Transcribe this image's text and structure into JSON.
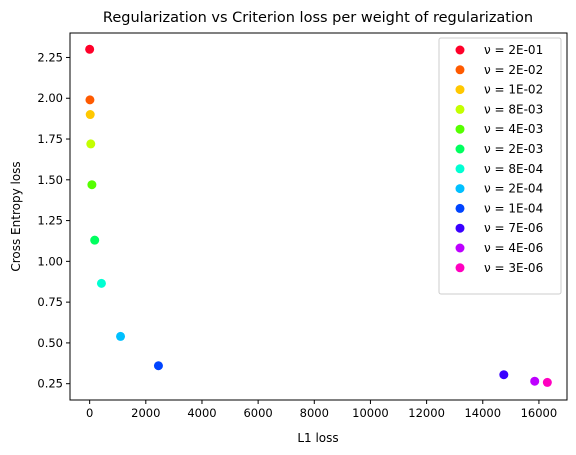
{
  "chart_data": {
    "type": "scatter",
    "title": "Regularization vs Criterion loss per weight of regularization",
    "xlabel": "L1 loss",
    "ylabel": "Cross Entropy loss",
    "xlim": [
      -700,
      17000
    ],
    "ylim": [
      0.15,
      2.4
    ],
    "xticks": [
      0,
      2000,
      4000,
      6000,
      8000,
      10000,
      12000,
      14000,
      16000
    ],
    "xtick_labels": [
      "0",
      "2000",
      "4000",
      "6000",
      "8000",
      "10000",
      "12000",
      "14000",
      "16000"
    ],
    "yticks": [
      0.25,
      0.5,
      0.75,
      1.0,
      1.25,
      1.5,
      1.75,
      2.0,
      2.25
    ],
    "ytick_labels": [
      "0.25",
      "0.50",
      "0.75",
      "1.00",
      "1.25",
      "1.50",
      "1.75",
      "2.00",
      "2.25"
    ],
    "grid": false,
    "legend_position": "top-right",
    "series": [
      {
        "name": "ν = 2E-01",
        "color": "#ff0029",
        "x": [
          0
        ],
        "y": [
          2.3
        ]
      },
      {
        "name": "ν = 2E-02",
        "color": "#ff5a00",
        "x": [
          10
        ],
        "y": [
          1.99
        ]
      },
      {
        "name": "ν = 1E-02",
        "color": "#ffc800",
        "x": [
          20
        ],
        "y": [
          1.9
        ]
      },
      {
        "name": "ν = 8E-03",
        "color": "#c3ff00",
        "x": [
          40
        ],
        "y": [
          1.72
        ]
      },
      {
        "name": "ν = 4E-03",
        "color": "#55ff00",
        "x": [
          80
        ],
        "y": [
          1.47
        ]
      },
      {
        "name": "ν = 2E-03",
        "color": "#00ff5f",
        "x": [
          180
        ],
        "y": [
          1.13
        ]
      },
      {
        "name": "ν = 8E-04",
        "color": "#00ffd2",
        "x": [
          420
        ],
        "y": [
          0.865
        ]
      },
      {
        "name": "ν = 2E-04",
        "color": "#00c0ff",
        "x": [
          1100
        ],
        "y": [
          0.54
        ]
      },
      {
        "name": "ν = 1E-04",
        "color": "#0044ff",
        "x": [
          2450
        ],
        "y": [
          0.36
        ]
      },
      {
        "name": "ν = 7E-06",
        "color": "#3a00ff",
        "x": [
          14750
        ],
        "y": [
          0.305
        ]
      },
      {
        "name": "ν = 4E-06",
        "color": "#bd00ff",
        "x": [
          15850
        ],
        "y": [
          0.265
        ]
      },
      {
        "name": "ν = 3E-06",
        "color": "#ff00c0",
        "x": [
          16300
        ],
        "y": [
          0.258
        ]
      }
    ]
  }
}
